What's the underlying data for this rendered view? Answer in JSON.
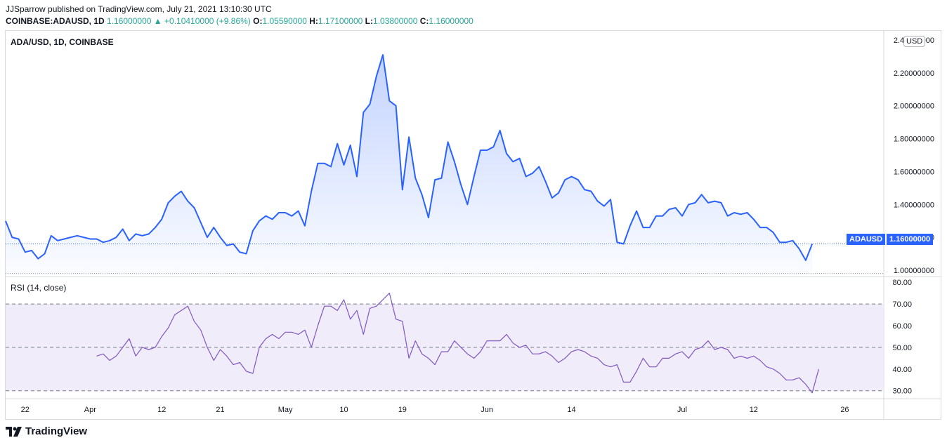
{
  "publisher_line": "JJSparrow published on TradingView.com, July 21, 2021 13:10:30 UTC",
  "ohlc": {
    "symbol": "COINBASE:ADAUSD, 1D",
    "close_text": "1.16000000",
    "change_arrow": "▲",
    "change_text": "+0.10410000 (+9.86%)",
    "o_label": "O:",
    "o_value": "1.05590000",
    "h_label": "H:",
    "h_value": "1.17100000",
    "l_label": "L:",
    "l_value": "1.03800000",
    "c_label": "C:",
    "c_value": "1.16000000"
  },
  "price_pane_title": "ADA/USD, 1D, COINBASE",
  "rsi_pane_title": "RSI (14, close)",
  "currency_badge": "USD",
  "last_price_label": {
    "symbol": "ADAUSD",
    "value": "1.16000000"
  },
  "footer_logo": "TradingView",
  "colors": {
    "line": "#2962ff",
    "rsi": "#7e57c2",
    "rsi_band": "#f1ecfa",
    "green": "#26a69a",
    "badge": "#2962ff"
  },
  "chart_data": [
    {
      "type": "area",
      "ylim": [
        0.97,
        2.43
      ],
      "y_ticks": [
        "2.40000000",
        "2.20000000",
        "2.00000000",
        "1.80000000",
        "1.60000000",
        "1.40000000",
        "1.20000000",
        "1.00000000"
      ],
      "y_tick_values": [
        2.4,
        2.2,
        2.0,
        1.8,
        1.6,
        1.4,
        1.2,
        1.0
      ],
      "x_ticks": [
        {
          "label": "22",
          "day": 3
        },
        {
          "label": "Apr",
          "day": 13
        },
        {
          "label": "12",
          "day": 24
        },
        {
          "label": "21",
          "day": 33
        },
        {
          "label": "May",
          "day": 43
        },
        {
          "label": "10",
          "day": 52
        },
        {
          "label": "19",
          "day": 61
        },
        {
          "label": "Jun",
          "day": 74
        },
        {
          "label": "14",
          "day": 87
        },
        {
          "label": "Jul",
          "day": 104
        },
        {
          "label": "12",
          "day": 115
        },
        {
          "label": "26",
          "day": 129
        }
      ],
      "x_range": [
        0,
        135
      ],
      "series": [
        {
          "values": [
            1.3,
            1.2,
            1.19,
            1.11,
            1.12,
            1.07,
            1.1,
            1.21,
            1.18,
            1.19,
            1.2,
            1.21,
            1.2,
            1.19,
            1.19,
            1.17,
            1.18,
            1.2,
            1.25,
            1.18,
            1.22,
            1.21,
            1.22,
            1.26,
            1.31,
            1.41,
            1.45,
            1.48,
            1.42,
            1.38,
            1.29,
            1.2,
            1.26,
            1.2,
            1.15,
            1.16,
            1.11,
            1.1,
            1.24,
            1.3,
            1.33,
            1.31,
            1.35,
            1.35,
            1.33,
            1.36,
            1.27,
            1.48,
            1.65,
            1.65,
            1.63,
            1.77,
            1.64,
            1.76,
            1.57,
            1.96,
            2.01,
            2.18,
            2.31,
            2.03,
            2.0,
            1.49,
            1.81,
            1.56,
            1.46,
            1.32,
            1.55,
            1.56,
            1.78,
            1.66,
            1.52,
            1.4,
            1.57,
            1.73,
            1.73,
            1.75,
            1.85,
            1.71,
            1.66,
            1.68,
            1.57,
            1.59,
            1.63,
            1.54,
            1.44,
            1.47,
            1.55,
            1.57,
            1.55,
            1.49,
            1.48,
            1.42,
            1.39,
            1.43,
            1.17,
            1.16,
            1.27,
            1.36,
            1.26,
            1.26,
            1.33,
            1.33,
            1.37,
            1.38,
            1.33,
            1.4,
            1.41,
            1.46,
            1.41,
            1.42,
            1.41,
            1.33,
            1.35,
            1.34,
            1.35,
            1.31,
            1.26,
            1.26,
            1.23,
            1.17,
            1.17,
            1.18,
            1.13,
            1.06,
            1.16
          ]
        }
      ],
      "last_value": 1.16
    },
    {
      "type": "line",
      "name": "RSI (14, close)",
      "ylim": [
        27,
        82
      ],
      "y_ticks": [
        "80.00",
        "70.00",
        "60.00",
        "50.00",
        "40.00",
        "30.00"
      ],
      "y_tick_values": [
        80,
        70,
        60,
        50,
        40,
        30
      ],
      "band": [
        30,
        70
      ],
      "midline": 50,
      "start_day": 14,
      "values": [
        46,
        47,
        44,
        46,
        50,
        54,
        46,
        50,
        49,
        50,
        55,
        59,
        65,
        67,
        69,
        62,
        58,
        50,
        44,
        49,
        46,
        42,
        43,
        39,
        38,
        50,
        54,
        56,
        54,
        57,
        57,
        56,
        58,
        50,
        60,
        69,
        69,
        67,
        72,
        63,
        67,
        56,
        68,
        69,
        72,
        75,
        63,
        62,
        45,
        53,
        47,
        45,
        42,
        48,
        48,
        53,
        50,
        47,
        45,
        48,
        53,
        53,
        53,
        56,
        52,
        50,
        51,
        47,
        47,
        48,
        46,
        43,
        45,
        48,
        49,
        48,
        46,
        45,
        42,
        41,
        42,
        34,
        34,
        39,
        45,
        41,
        41,
        45,
        45,
        47,
        48,
        45,
        49,
        50,
        53,
        49,
        50,
        49,
        45,
        46,
        45,
        46,
        44,
        41,
        40,
        38,
        35,
        35,
        36,
        33,
        29,
        40
      ]
    }
  ]
}
